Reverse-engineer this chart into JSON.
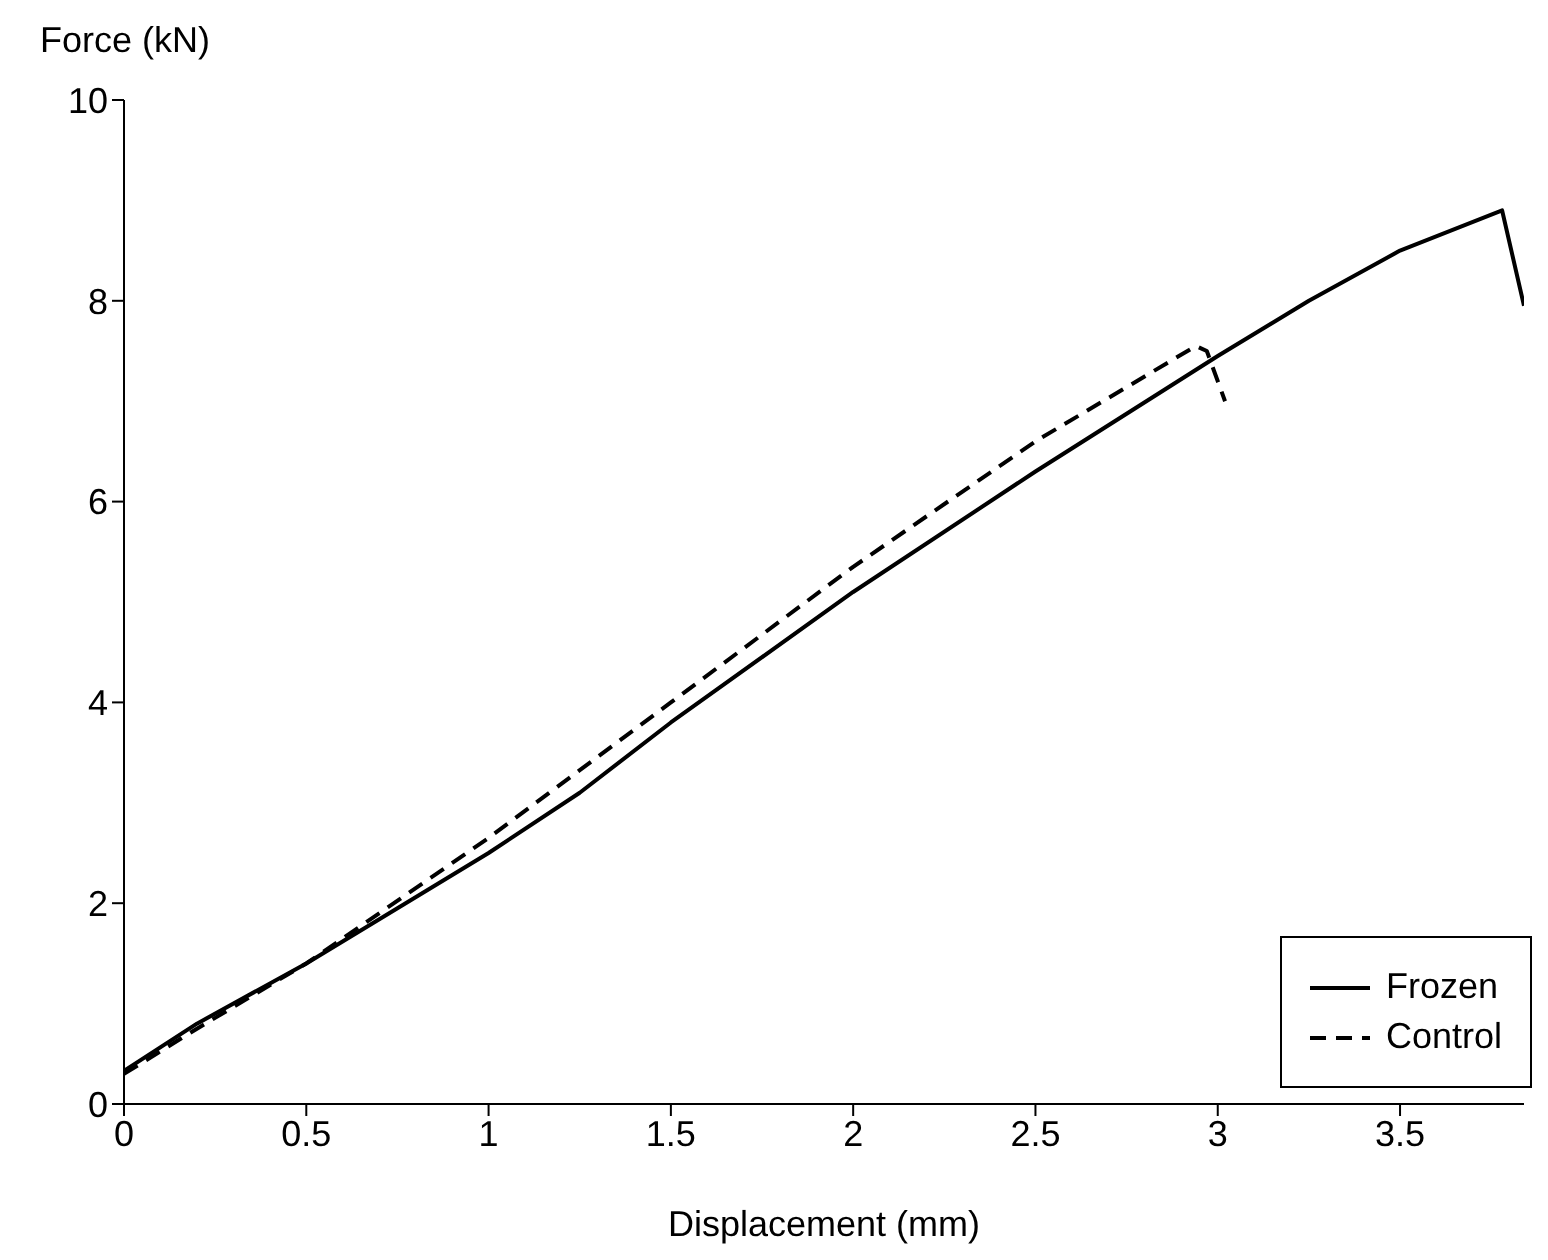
{
  "chart_data": {
    "type": "line",
    "xlabel": "Displacement (mm)",
    "ylabel": "Force (kN)",
    "xlim": [
      0,
      3.84
    ],
    "xticks": [
      0,
      0.5,
      1,
      1.5,
      2,
      2.5,
      3,
      3.5
    ],
    "ylim": [
      0,
      10
    ],
    "yticks": [
      0,
      2,
      4,
      6,
      8,
      10
    ],
    "grid": false,
    "legend": "bottom right",
    "marker": "none",
    "series": [
      {
        "name": "Frozen",
        "color": "#000000",
        "line_style": "solid",
        "x": [
          0,
          0.2,
          0.5,
          0.75,
          1,
          1.25,
          1.5,
          2,
          2.5,
          3,
          3.25,
          3.5,
          3.78,
          3.84
        ],
        "values": [
          0.33,
          0.8,
          1.4,
          1.95,
          2.5,
          3.1,
          3.8,
          5.1,
          6.3,
          7.45,
          8.0,
          8.5,
          8.9,
          7.95
        ]
      },
      {
        "name": "Control",
        "color": "#000000",
        "line_style": "dashed",
        "x": [
          0,
          0.2,
          0.5,
          1,
          1.5,
          2,
          2.5,
          2.94,
          2.97,
          3.02
        ],
        "values": [
          0.3,
          0.75,
          1.4,
          2.65,
          4.0,
          5.35,
          6.6,
          7.55,
          7.5,
          7.0
        ]
      }
    ]
  }
}
